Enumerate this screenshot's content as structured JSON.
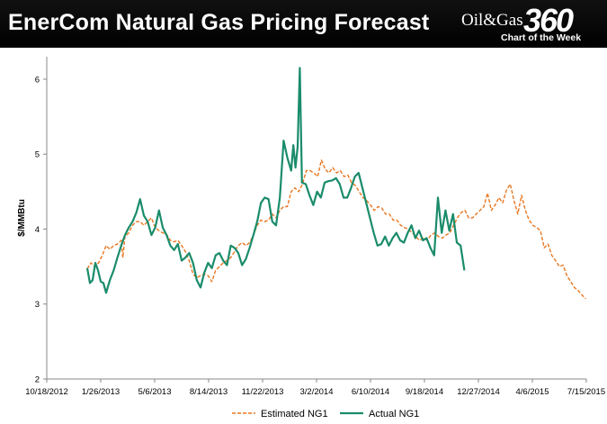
{
  "header": {
    "title": "EnerCom Natural Gas Pricing Forecast",
    "logo_brand": "Oil&Gas",
    "logo_number": "360",
    "logo_tagline": "Chart of the Week"
  },
  "chart_data": {
    "type": "line",
    "title": "EnerCom Natural Gas Pricing Forecast",
    "ylabel": "$/MMBtu",
    "xlabel": "",
    "ylim": [
      2,
      6.3
    ],
    "yticks": [
      2,
      3,
      4,
      5,
      6
    ],
    "xticks": [
      "10/18/2012",
      "1/26/2013",
      "5/6/2013",
      "8/14/2013",
      "11/22/2013",
      "3/2/2014",
      "6/10/2014",
      "9/18/2014",
      "12/27/2014",
      "4/6/2015",
      "7/15/2015"
    ],
    "grid": false,
    "legend_position": "bottom",
    "series": [
      {
        "name": "Estimated NG1",
        "color": "#E87722",
        "style": "dashed",
        "points": [
          [
            "2013-01-01",
            3.47
          ],
          [
            "2013-01-08",
            3.55
          ],
          [
            "2013-01-15",
            3.5
          ],
          [
            "2013-01-22",
            3.55
          ],
          [
            "2013-01-29",
            3.65
          ],
          [
            "2013-02-05",
            3.78
          ],
          [
            "2013-02-12",
            3.73
          ],
          [
            "2013-02-19",
            3.78
          ],
          [
            "2013-02-26",
            3.8
          ],
          [
            "2013-03-05",
            3.85
          ],
          [
            "2013-03-08",
            3.62
          ],
          [
            "2013-03-12",
            3.9
          ],
          [
            "2013-03-19",
            3.95
          ],
          [
            "2013-03-26",
            4.05
          ],
          [
            "2013-04-02",
            4.1
          ],
          [
            "2013-04-09",
            4.1
          ],
          [
            "2013-04-16",
            4.05
          ],
          [
            "2013-04-23",
            4.1
          ],
          [
            "2013-04-30",
            4.15
          ],
          [
            "2013-05-07",
            4.02
          ],
          [
            "2013-05-14",
            3.98
          ],
          [
            "2013-05-21",
            3.95
          ],
          [
            "2013-05-28",
            3.93
          ],
          [
            "2013-06-04",
            3.85
          ],
          [
            "2013-06-11",
            3.83
          ],
          [
            "2013-06-18",
            3.85
          ],
          [
            "2013-06-25",
            3.78
          ],
          [
            "2013-07-02",
            3.7
          ],
          [
            "2013-07-09",
            3.58
          ],
          [
            "2013-07-16",
            3.4
          ],
          [
            "2013-07-23",
            3.35
          ],
          [
            "2013-07-30",
            3.38
          ],
          [
            "2013-08-06",
            3.4
          ],
          [
            "2013-08-13",
            3.38
          ],
          [
            "2013-08-20",
            3.3
          ],
          [
            "2013-08-27",
            3.45
          ],
          [
            "2013-09-03",
            3.5
          ],
          [
            "2013-09-10",
            3.55
          ],
          [
            "2013-09-17",
            3.58
          ],
          [
            "2013-09-24",
            3.62
          ],
          [
            "2013-10-01",
            3.7
          ],
          [
            "2013-10-08",
            3.78
          ],
          [
            "2013-10-15",
            3.82
          ],
          [
            "2013-10-22",
            3.78
          ],
          [
            "2013-10-29",
            3.82
          ],
          [
            "2013-11-05",
            3.92
          ],
          [
            "2013-11-12",
            4.05
          ],
          [
            "2013-11-19",
            4.12
          ],
          [
            "2013-11-26",
            4.1
          ],
          [
            "2013-12-03",
            4.12
          ],
          [
            "2013-12-10",
            4.2
          ],
          [
            "2013-12-17",
            4.15
          ],
          [
            "2013-12-24",
            4.25
          ],
          [
            "2013-12-31",
            4.3
          ],
          [
            "2014-01-07",
            4.3
          ],
          [
            "2014-01-14",
            4.5
          ],
          [
            "2014-01-21",
            4.55
          ],
          [
            "2014-01-28",
            4.5
          ],
          [
            "2014-02-04",
            4.6
          ],
          [
            "2014-02-11",
            4.78
          ],
          [
            "2014-02-18",
            4.78
          ],
          [
            "2014-02-25",
            4.75
          ],
          [
            "2014-03-04",
            4.7
          ],
          [
            "2014-03-11",
            4.92
          ],
          [
            "2014-03-18",
            4.8
          ],
          [
            "2014-03-25",
            4.75
          ],
          [
            "2014-04-01",
            4.82
          ],
          [
            "2014-04-08",
            4.75
          ],
          [
            "2014-04-15",
            4.78
          ],
          [
            "2014-04-22",
            4.7
          ],
          [
            "2014-04-29",
            4.72
          ],
          [
            "2014-05-06",
            4.62
          ],
          [
            "2014-05-13",
            4.58
          ],
          [
            "2014-05-20",
            4.5
          ],
          [
            "2014-05-27",
            4.42
          ],
          [
            "2014-06-03",
            4.38
          ],
          [
            "2014-06-10",
            4.32
          ],
          [
            "2014-06-17",
            4.25
          ],
          [
            "2014-06-24",
            4.3
          ],
          [
            "2014-07-01",
            4.28
          ],
          [
            "2014-07-08",
            4.2
          ],
          [
            "2014-07-15",
            4.2
          ],
          [
            "2014-07-22",
            4.12
          ],
          [
            "2014-07-29",
            4.12
          ],
          [
            "2014-08-05",
            4.05
          ],
          [
            "2014-08-12",
            4.02
          ],
          [
            "2014-08-19",
            4.0
          ],
          [
            "2014-08-26",
            3.95
          ],
          [
            "2014-09-02",
            3.9
          ],
          [
            "2014-09-09",
            3.85
          ],
          [
            "2014-09-16",
            3.88
          ],
          [
            "2014-09-23",
            3.85
          ],
          [
            "2014-09-30",
            3.92
          ],
          [
            "2014-10-07",
            3.95
          ],
          [
            "2014-10-14",
            3.9
          ],
          [
            "2014-10-21",
            3.88
          ],
          [
            "2014-10-28",
            3.92
          ],
          [
            "2014-11-04",
            3.95
          ],
          [
            "2014-11-11",
            4.05
          ],
          [
            "2014-11-18",
            4.15
          ],
          [
            "2014-11-25",
            4.22
          ],
          [
            "2014-12-02",
            4.25
          ],
          [
            "2014-12-09",
            4.15
          ],
          [
            "2014-12-16",
            4.15
          ],
          [
            "2014-12-23",
            4.2
          ],
          [
            "2014-12-30",
            4.25
          ],
          [
            "2015-01-06",
            4.3
          ],
          [
            "2015-01-13",
            4.48
          ],
          [
            "2015-01-20",
            4.25
          ],
          [
            "2015-01-27",
            4.32
          ],
          [
            "2015-02-03",
            4.42
          ],
          [
            "2015-02-10",
            4.35
          ],
          [
            "2015-02-17",
            4.52
          ],
          [
            "2015-02-24",
            4.6
          ],
          [
            "2015-03-03",
            4.38
          ],
          [
            "2015-03-10",
            4.2
          ],
          [
            "2015-03-17",
            4.45
          ],
          [
            "2015-03-24",
            4.25
          ],
          [
            "2015-03-31",
            4.12
          ],
          [
            "2015-04-07",
            4.05
          ],
          [
            "2015-04-14",
            4.02
          ],
          [
            "2015-04-21",
            3.98
          ],
          [
            "2015-04-28",
            3.75
          ],
          [
            "2015-05-05",
            3.8
          ],
          [
            "2015-05-12",
            3.65
          ],
          [
            "2015-05-19",
            3.58
          ],
          [
            "2015-05-26",
            3.5
          ],
          [
            "2015-06-02",
            3.52
          ],
          [
            "2015-06-09",
            3.38
          ],
          [
            "2015-06-16",
            3.3
          ],
          [
            "2015-06-23",
            3.22
          ],
          [
            "2015-06-30",
            3.18
          ],
          [
            "2015-07-07",
            3.12
          ],
          [
            "2015-07-14",
            3.07
          ]
        ]
      },
      {
        "name": "Actual NG1",
        "color": "#1A8C6B",
        "style": "solid",
        "points": [
          [
            "2013-01-01",
            3.48
          ],
          [
            "2013-01-06",
            3.28
          ],
          [
            "2013-01-11",
            3.32
          ],
          [
            "2013-01-16",
            3.55
          ],
          [
            "2013-01-21",
            3.45
          ],
          [
            "2013-01-26",
            3.3
          ],
          [
            "2013-01-31",
            3.28
          ],
          [
            "2013-02-05",
            3.15
          ],
          [
            "2013-02-12",
            3.32
          ],
          [
            "2013-02-19",
            3.45
          ],
          [
            "2013-02-26",
            3.62
          ],
          [
            "2013-03-05",
            3.78
          ],
          [
            "2013-03-12",
            3.92
          ],
          [
            "2013-03-19",
            4.02
          ],
          [
            "2013-03-26",
            4.1
          ],
          [
            "2013-04-02",
            4.22
          ],
          [
            "2013-04-09",
            4.4
          ],
          [
            "2013-04-16",
            4.18
          ],
          [
            "2013-04-23",
            4.1
          ],
          [
            "2013-04-30",
            3.92
          ],
          [
            "2013-05-07",
            4.02
          ],
          [
            "2013-05-14",
            4.25
          ],
          [
            "2013-05-21",
            4.02
          ],
          [
            "2013-05-28",
            3.92
          ],
          [
            "2013-06-04",
            3.78
          ],
          [
            "2013-06-11",
            3.72
          ],
          [
            "2013-06-18",
            3.8
          ],
          [
            "2013-06-25",
            3.58
          ],
          [
            "2013-07-02",
            3.62
          ],
          [
            "2013-07-09",
            3.68
          ],
          [
            "2013-07-16",
            3.55
          ],
          [
            "2013-07-23",
            3.32
          ],
          [
            "2013-07-30",
            3.22
          ],
          [
            "2013-08-06",
            3.42
          ],
          [
            "2013-08-13",
            3.55
          ],
          [
            "2013-08-20",
            3.48
          ],
          [
            "2013-08-27",
            3.65
          ],
          [
            "2013-09-03",
            3.68
          ],
          [
            "2013-09-10",
            3.58
          ],
          [
            "2013-09-17",
            3.52
          ],
          [
            "2013-09-24",
            3.78
          ],
          [
            "2013-10-01",
            3.75
          ],
          [
            "2013-10-08",
            3.68
          ],
          [
            "2013-10-15",
            3.52
          ],
          [
            "2013-10-22",
            3.6
          ],
          [
            "2013-10-29",
            3.75
          ],
          [
            "2013-11-05",
            3.92
          ],
          [
            "2013-11-12",
            4.1
          ],
          [
            "2013-11-19",
            4.35
          ],
          [
            "2013-11-26",
            4.42
          ],
          [
            "2013-12-03",
            4.4
          ],
          [
            "2013-12-10",
            4.1
          ],
          [
            "2013-12-17",
            4.05
          ],
          [
            "2013-12-24",
            4.42
          ],
          [
            "2013-12-31",
            5.18
          ],
          [
            "2014-01-07",
            4.95
          ],
          [
            "2014-01-14",
            4.78
          ],
          [
            "2014-01-18",
            5.12
          ],
          [
            "2014-01-22",
            4.82
          ],
          [
            "2014-01-26",
            5.1
          ],
          [
            "2014-01-30",
            6.15
          ],
          [
            "2014-02-03",
            4.62
          ],
          [
            "2014-02-10",
            4.6
          ],
          [
            "2014-02-17",
            4.45
          ],
          [
            "2014-02-24",
            4.32
          ],
          [
            "2014-03-03",
            4.5
          ],
          [
            "2014-03-10",
            4.42
          ],
          [
            "2014-03-17",
            4.62
          ],
          [
            "2014-03-24",
            4.64
          ],
          [
            "2014-03-31",
            4.65
          ],
          [
            "2014-04-07",
            4.68
          ],
          [
            "2014-04-14",
            4.6
          ],
          [
            "2014-04-21",
            4.42
          ],
          [
            "2014-04-28",
            4.42
          ],
          [
            "2014-05-05",
            4.55
          ],
          [
            "2014-05-12",
            4.7
          ],
          [
            "2014-05-19",
            4.75
          ],
          [
            "2014-05-26",
            4.55
          ],
          [
            "2014-06-02",
            4.35
          ],
          [
            "2014-06-09",
            4.15
          ],
          [
            "2014-06-16",
            3.95
          ],
          [
            "2014-06-23",
            3.78
          ],
          [
            "2014-06-30",
            3.8
          ],
          [
            "2014-07-07",
            3.9
          ],
          [
            "2014-07-14",
            3.78
          ],
          [
            "2014-07-21",
            3.88
          ],
          [
            "2014-07-28",
            3.95
          ],
          [
            "2014-08-04",
            3.85
          ],
          [
            "2014-08-11",
            3.82
          ],
          [
            "2014-08-18",
            3.95
          ],
          [
            "2014-08-25",
            4.05
          ],
          [
            "2014-09-01",
            3.88
          ],
          [
            "2014-09-08",
            3.98
          ],
          [
            "2014-09-15",
            3.85
          ],
          [
            "2014-09-22",
            3.88
          ],
          [
            "2014-09-29",
            3.75
          ],
          [
            "2014-10-06",
            3.65
          ],
          [
            "2014-10-13",
            4.42
          ],
          [
            "2014-10-20",
            3.95
          ],
          [
            "2014-10-27",
            4.25
          ],
          [
            "2014-11-03",
            3.98
          ],
          [
            "2014-11-10",
            4.2
          ],
          [
            "2014-11-17",
            3.82
          ],
          [
            "2014-11-24",
            3.78
          ],
          [
            "2014-12-01",
            3.45
          ]
        ]
      }
    ]
  }
}
